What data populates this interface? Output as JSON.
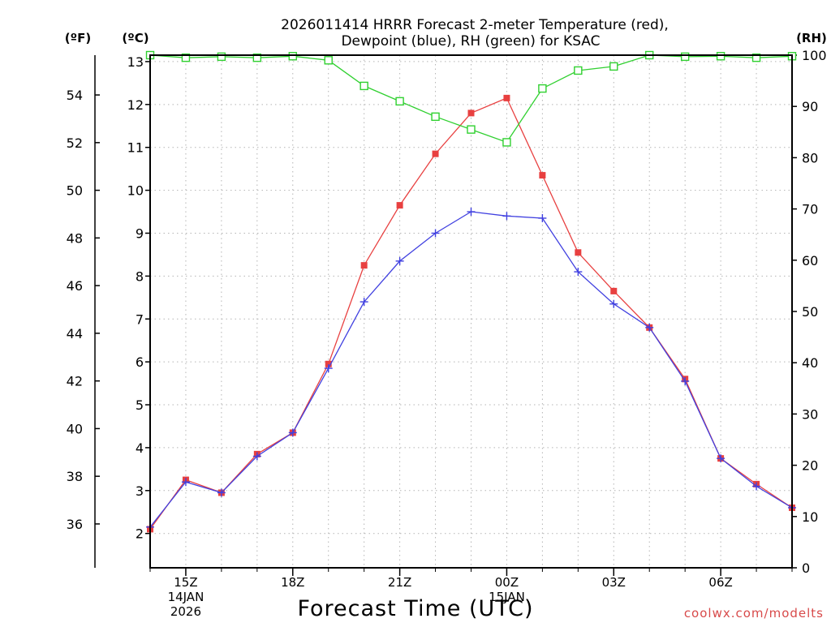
{
  "chart_data": {
    "type": "line",
    "title_line1": "2026011414 HRRR Forecast 2-meter Temperature (red),",
    "title_line2": "Dewpoint (blue), RH (green) for KSAC",
    "left_outer_unit": "(ºF)",
    "left_inner_unit": "(ºC)",
    "right_unit": "(RH)",
    "xlabel": "Forecast Time (UTC)",
    "credit": "coolwx.com/modelts",
    "x_hours": [
      0,
      1,
      2,
      3,
      4,
      5,
      6,
      7,
      8,
      9,
      10,
      11,
      12,
      13,
      14,
      15,
      16,
      17,
      18
    ],
    "x_ticks": [
      {
        "hour": 1,
        "label": "15Z",
        "sub1": "14JAN",
        "sub2": "2026"
      },
      {
        "hour": 4,
        "label": "18Z",
        "sub1": "",
        "sub2": ""
      },
      {
        "hour": 7,
        "label": "21Z",
        "sub1": "",
        "sub2": ""
      },
      {
        "hour": 10,
        "label": "00Z",
        "sub1": "15JAN",
        "sub2": ""
      },
      {
        "hour": 13,
        "label": "03Z",
        "sub1": "",
        "sub2": ""
      },
      {
        "hour": 16,
        "label": "06Z",
        "sub1": "",
        "sub2": ""
      }
    ],
    "celsius_axis": {
      "range": [
        1.2,
        13.15
      ],
      "ticks": [
        "2",
        "3",
        "4",
        "5",
        "6",
        "7",
        "8",
        "9",
        "10",
        "11",
        "12",
        "13"
      ]
    },
    "fahrenheit_axis": {
      "ticks": [
        "36",
        "38",
        "40",
        "42",
        "44",
        "46",
        "48",
        "50",
        "52",
        "54"
      ]
    },
    "rh_axis": {
      "range": [
        0,
        100
      ],
      "ticks": [
        "0",
        "10",
        "20",
        "30",
        "40",
        "50",
        "60",
        "70",
        "80",
        "90",
        "100"
      ]
    },
    "series": [
      {
        "name": "Temperature",
        "color": "#e84040",
        "marker": "filled-square",
        "values": [
          2.1,
          3.25,
          2.95,
          3.85,
          4.35,
          5.95,
          8.25,
          9.65,
          10.85,
          11.8,
          12.15,
          10.35,
          8.55,
          7.65,
          6.8,
          5.6,
          3.75,
          3.15,
          2.6
        ]
      },
      {
        "name": "Dewpoint",
        "color": "#4040e0",
        "marker": "plus",
        "values": [
          2.15,
          3.2,
          2.95,
          3.8,
          4.35,
          5.85,
          7.4,
          8.35,
          9.0,
          9.5,
          9.4,
          9.35,
          8.1,
          7.35,
          6.8,
          5.55,
          3.75,
          3.1,
          2.6
        ]
      },
      {
        "name": "RH",
        "color": "#30d030",
        "marker": "open-square",
        "values": [
          100,
          99.5,
          99.7,
          99.5,
          99.8,
          99,
          94,
          91,
          88,
          85.5,
          83,
          93.5,
          97,
          97.8,
          100,
          99.7,
          99.8,
          99.5,
          99.8
        ]
      }
    ]
  }
}
